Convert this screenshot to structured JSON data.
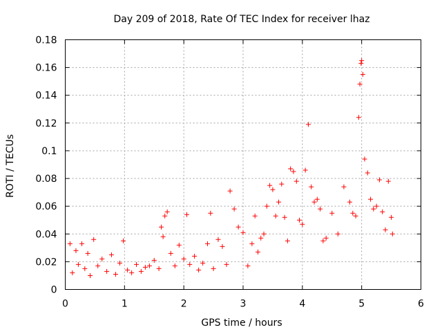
{
  "chart_data": {
    "type": "scatter",
    "title": "Day 209 of 2018, Rate Of TEC Index for receiver lhaz",
    "xlabel": "GPS time / hours",
    "ylabel": "ROTI / TECUs",
    "xlim": [
      0,
      6
    ],
    "ylim": [
      0,
      0.18
    ],
    "xticks": [
      0,
      1,
      2,
      3,
      4,
      5,
      6
    ],
    "yticks": [
      0,
      0.02,
      0.04,
      0.06,
      0.08,
      0.1,
      0.12,
      0.14,
      0.16,
      0.18
    ],
    "xtick_labels": [
      "0",
      "1",
      "2",
      "3",
      "4",
      "5",
      "6"
    ],
    "ytick_labels": [
      "0",
      "0.02",
      "0.04",
      "0.06",
      "0.08",
      "0.1",
      "0.12",
      "0.14",
      "0.16",
      "0.18"
    ],
    "grid": true,
    "marker": "+",
    "color": "#ff0000",
    "series": [
      {
        "name": "ROTI",
        "x": [
          0.08,
          0.12,
          0.18,
          0.22,
          0.28,
          0.33,
          0.38,
          0.42,
          0.48,
          0.55,
          0.62,
          0.7,
          0.78,
          0.85,
          0.92,
          0.98,
          1.05,
          1.12,
          1.2,
          1.28,
          1.35,
          1.42,
          1.5,
          1.58,
          1.62,
          1.65,
          1.68,
          1.72,
          1.78,
          1.85,
          1.92,
          2.0,
          2.05,
          2.1,
          2.18,
          2.25,
          2.32,
          2.4,
          2.45,
          2.5,
          2.58,
          2.65,
          2.72,
          2.78,
          2.85,
          2.92,
          3.0,
          3.08,
          3.15,
          3.2,
          3.25,
          3.3,
          3.35,
          3.4,
          3.45,
          3.5,
          3.55,
          3.6,
          3.65,
          3.7,
          3.75,
          3.8,
          3.85,
          3.9,
          3.95,
          4.0,
          4.05,
          4.1,
          4.15,
          4.2,
          4.25,
          4.3,
          4.35,
          4.4,
          4.5,
          4.6,
          4.7,
          4.8,
          4.85,
          4.9,
          4.95,
          4.97,
          4.99,
          5.0,
          5.02,
          5.05,
          5.1,
          5.15,
          5.2,
          5.25,
          5.3,
          5.35,
          5.4,
          5.45,
          5.5,
          5.52
        ],
        "y": [
          0.033,
          0.012,
          0.028,
          0.018,
          0.033,
          0.015,
          0.026,
          0.01,
          0.036,
          0.017,
          0.022,
          0.013,
          0.025,
          0.011,
          0.019,
          0.035,
          0.014,
          0.012,
          0.018,
          0.013,
          0.016,
          0.017,
          0.021,
          0.015,
          0.045,
          0.038,
          0.053,
          0.056,
          0.026,
          0.017,
          0.032,
          0.022,
          0.054,
          0.018,
          0.024,
          0.014,
          0.019,
          0.033,
          0.055,
          0.015,
          0.036,
          0.031,
          0.018,
          0.071,
          0.058,
          0.045,
          0.041,
          0.017,
          0.033,
          0.053,
          0.027,
          0.037,
          0.04,
          0.06,
          0.075,
          0.072,
          0.053,
          0.063,
          0.076,
          0.052,
          0.035,
          0.087,
          0.085,
          0.078,
          0.05,
          0.047,
          0.086,
          0.119,
          0.074,
          0.063,
          0.065,
          0.058,
          0.035,
          0.037,
          0.055,
          0.04,
          0.074,
          0.063,
          0.055,
          0.053,
          0.124,
          0.148,
          0.163,
          0.165,
          0.155,
          0.094,
          0.084,
          0.065,
          0.058,
          0.06,
          0.079,
          0.056,
          0.043,
          0.078,
          0.052,
          0.04
        ]
      }
    ]
  }
}
